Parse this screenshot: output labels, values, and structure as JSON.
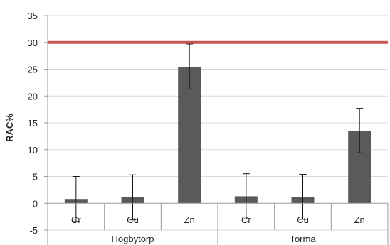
{
  "chart_data": {
    "type": "bar",
    "ylabel": "RAC%",
    "ylim": [
      -5,
      35
    ],
    "yticks": [
      -5,
      0,
      5,
      10,
      15,
      20,
      25,
      30,
      35
    ],
    "grid": true,
    "categories": [
      "Cr",
      "Cu",
      "Zn",
      "Cr",
      "Cu",
      "Zn"
    ],
    "groups": [
      {
        "label": "Högbytorp",
        "categories": [
          "Cr",
          "Cu",
          "Zn"
        ]
      },
      {
        "label": "Torma",
        "categories": [
          "Cr",
          "Cu",
          "Zn"
        ]
      }
    ],
    "series": [
      {
        "values": [
          0.8,
          1.1,
          25.4,
          1.3,
          1.2,
          13.5
        ],
        "error_upper": [
          5.0,
          5.3,
          29.7,
          5.5,
          5.4,
          17.7
        ],
        "error_lower": [
          -3.4,
          -3.1,
          21.3,
          -2.9,
          -3.0,
          9.4
        ],
        "color": "#5a5a5a"
      }
    ],
    "reference_line": {
      "value": 30,
      "color": "#c0504d"
    }
  }
}
